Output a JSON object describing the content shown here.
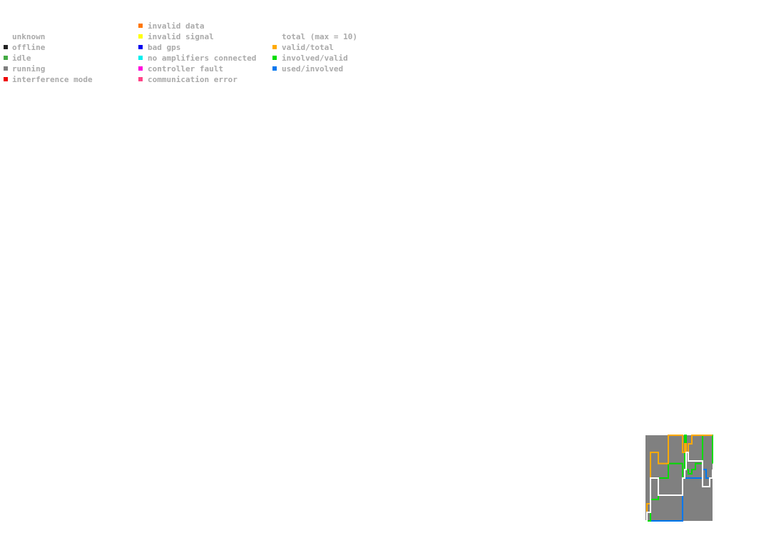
{
  "status_legend": [
    [
      {
        "label": "unknown",
        "color": "#ffffff"
      },
      {
        "label": "offline",
        "color": "#222222"
      },
      {
        "label": "idle",
        "color": "#44aa44"
      },
      {
        "label": "running",
        "color": "#808080"
      },
      {
        "label": "interference mode",
        "color": "#ee0000"
      }
    ],
    [
      {
        "label": "invalid data",
        "color": "#ff7700"
      },
      {
        "label": "invalid signal",
        "color": "#ffff00"
      },
      {
        "label": "bad gps",
        "color": "#0000ee"
      },
      {
        "label": "no amplifiers connected",
        "color": "#00eeee"
      },
      {
        "label": "controller fault",
        "color": "#ff00dd"
      },
      {
        "label": "communication error",
        "color": "#ff4488"
      }
    ]
  ],
  "chart_data": {
    "type": "line",
    "step": true,
    "background_status": "running",
    "x": [
      0,
      2,
      7,
      10,
      18,
      20,
      32,
      50,
      52,
      55,
      57,
      60,
      65,
      70,
      75,
      80,
      85,
      90,
      94
    ],
    "xlim": [
      0,
      94
    ],
    "ylim": [
      0,
      1
    ],
    "y2lim": [
      0,
      10
    ],
    "series": [
      {
        "name": "total (max = 10)",
        "color": "#ffffff",
        "axis": "y2",
        "values": [
          0,
          1,
          5,
          5,
          3,
          3,
          3,
          3,
          5,
          6,
          8,
          7,
          7,
          7,
          7,
          4,
          4,
          5,
          6
        ]
      },
      {
        "name": "valid/total",
        "color": "#ffaa00",
        "values": [
          0,
          0.2,
          0.8,
          0.8,
          0.67,
          0.67,
          1,
          1,
          0.8,
          0.9,
          0.8,
          0.9,
          1,
          1,
          1,
          1,
          1,
          1,
          1
        ]
      },
      {
        "name": "involved/valid",
        "color": "#00dd00",
        "values": [
          0,
          0,
          0.25,
          0.25,
          0.5,
          0.5,
          0.67,
          0.67,
          0.5,
          1,
          0.6,
          0.55,
          0.6,
          0.67,
          0.67,
          1,
          1,
          1,
          0.67
        ]
      },
      {
        "name": "used/involved",
        "color": "#0077ee",
        "values": [
          0,
          0,
          0,
          0,
          0,
          0,
          0,
          0,
          0.5,
          0.5,
          0.5,
          0.5,
          0.5,
          0.5,
          0.5,
          0.6,
          0.5,
          0.5,
          0.5
        ]
      }
    ]
  }
}
